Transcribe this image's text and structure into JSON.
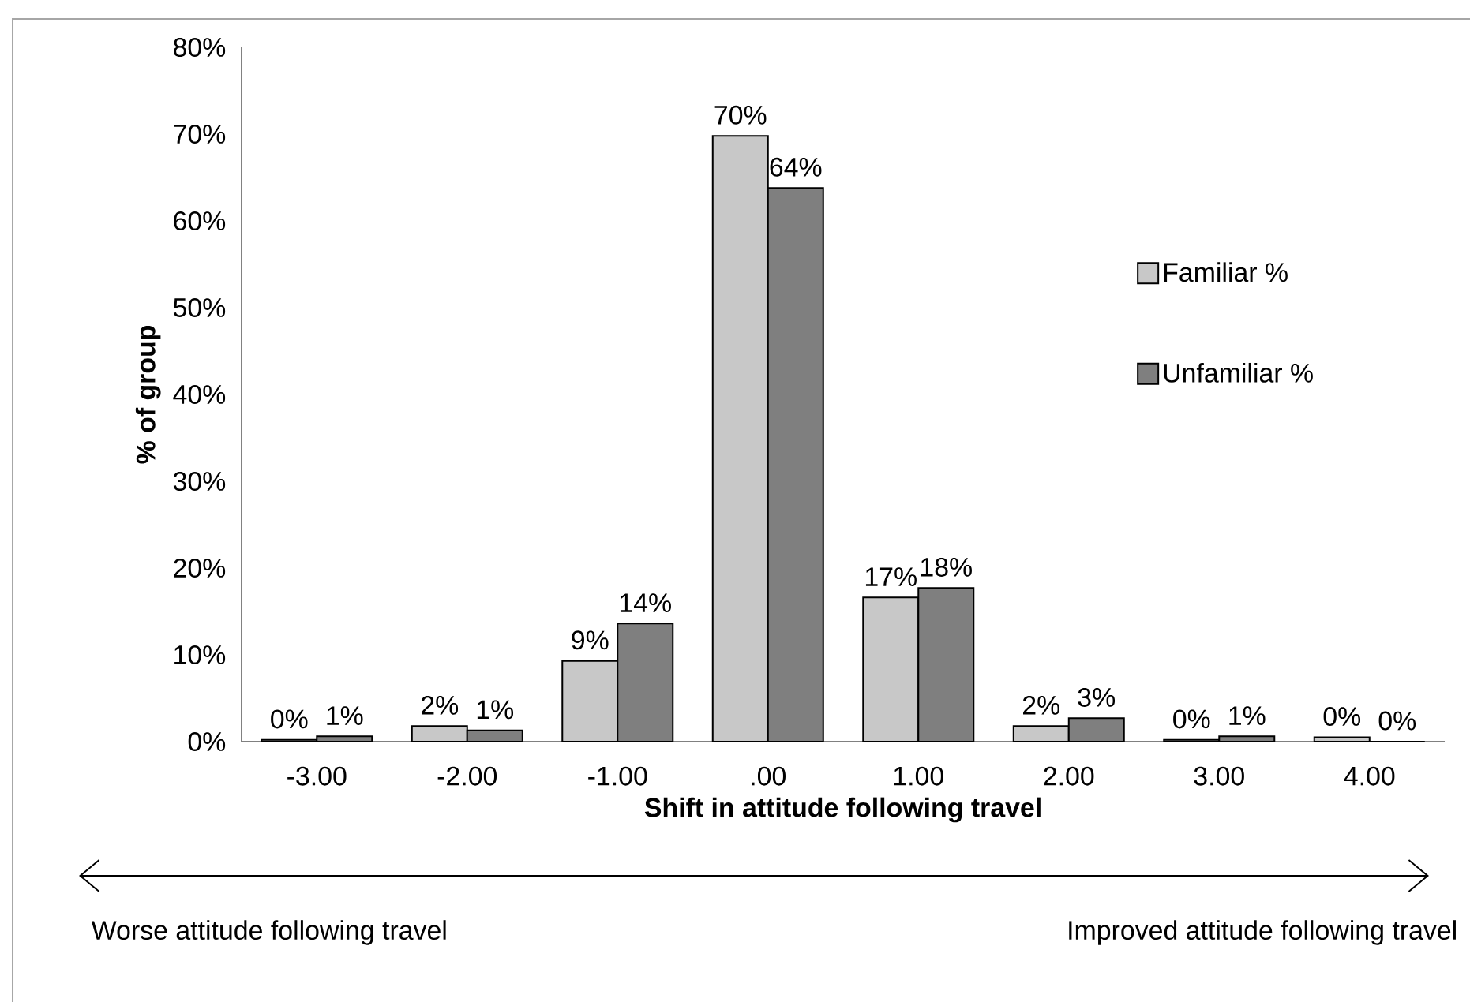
{
  "chart_data": {
    "type": "bar",
    "xlabel": "Shift in attitude following travel",
    "ylabel": "% of group",
    "categories": [
      "-3.00",
      "-2.00",
      "-1.00",
      ".00",
      "1.00",
      "2.00",
      "3.00",
      "4.00"
    ],
    "series": [
      {
        "name": "Familiar %",
        "color": "#c8c8c8",
        "values": [
          0.2,
          1.8,
          9.3,
          69.8,
          16.6,
          1.8,
          0.2,
          0.5
        ],
        "value_labels": [
          "0%",
          "2%",
          "9%",
          "70%",
          "17%",
          "2%",
          "0%",
          "0%"
        ]
      },
      {
        "name": "Unfamiliar %",
        "color": "#7f7f7f",
        "values": [
          0.6,
          1.3,
          13.6,
          63.8,
          17.7,
          2.7,
          0.6,
          0
        ],
        "value_labels": [
          "1%",
          "1%",
          "14%",
          "64%",
          "18%",
          "3%",
          "1%",
          "0%"
        ]
      }
    ],
    "ylim": [
      0,
      80
    ],
    "yticks": [
      {
        "value": 0,
        "label": "0%"
      },
      {
        "value": 10,
        "label": "10%"
      },
      {
        "value": 20,
        "label": "20%"
      },
      {
        "value": 30,
        "label": "30%"
      },
      {
        "value": 40,
        "label": "40%"
      },
      {
        "value": 50,
        "label": "50%"
      },
      {
        "value": 60,
        "label": "60%"
      },
      {
        "value": 70,
        "label": "70%"
      },
      {
        "value": 80,
        "label": "80%"
      }
    ],
    "grid": false,
    "legend": "right",
    "annotations": [
      "Worse attitude following travel",
      "Improved attitude following travel"
    ]
  }
}
